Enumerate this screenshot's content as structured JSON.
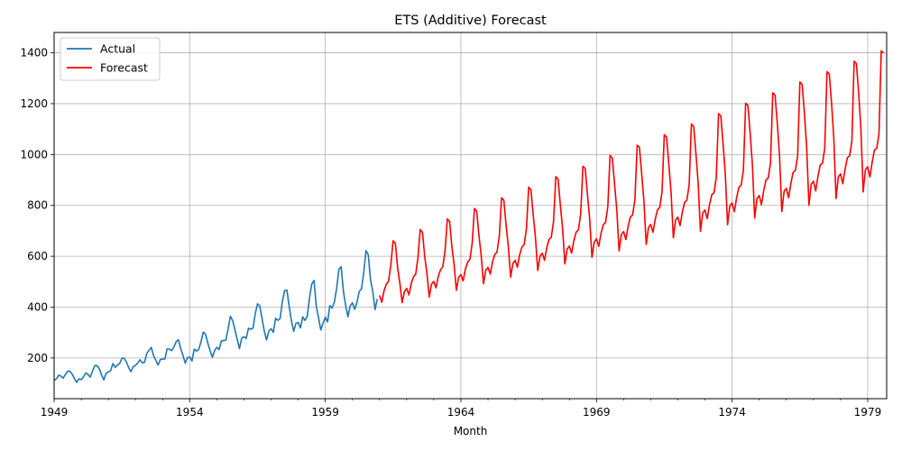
{
  "chart_data": {
    "type": "line",
    "title": "ETS (Additive) Forecast",
    "xlabel": "Month",
    "ylabel": "",
    "xlim": [
      1949.0,
      1979.7
    ],
    "ylim": [
      40,
      1480
    ],
    "x_ticks": [
      1949,
      1954,
      1959,
      1964,
      1969,
      1974,
      1979
    ],
    "x_tick_labels": [
      "1949",
      "1954",
      "1959",
      "1964",
      "1969",
      "1974",
      "1979"
    ],
    "y_ticks": [
      200,
      400,
      600,
      800,
      1000,
      1200,
      1400
    ],
    "y_tick_labels": [
      "200",
      "400",
      "600",
      "800",
      "1000",
      "1200",
      "1400"
    ],
    "grid": true,
    "legend_position": "top-left",
    "series": [
      {
        "name": "Actual",
        "color": "#1f77b4",
        "x_start": 1949.0,
        "x_step": 0.0833333,
        "values": [
          112,
          118,
          132,
          129,
          121,
          135,
          148,
          148,
          136,
          119,
          104,
          118,
          115,
          126,
          141,
          135,
          125,
          149,
          170,
          170,
          158,
          133,
          114,
          140,
          145,
          150,
          178,
          163,
          172,
          178,
          199,
          199,
          184,
          162,
          146,
          166,
          171,
          180,
          193,
          181,
          183,
          218,
          230,
          242,
          209,
          191,
          172,
          194,
          196,
          196,
          236,
          235,
          229,
          243,
          264,
          272,
          237,
          211,
          180,
          201,
          204,
          188,
          235,
          227,
          234,
          264,
          302,
          293,
          259,
          229,
          203,
          229,
          242,
          233,
          267,
          269,
          270,
          315,
          364,
          347,
          312,
          274,
          237,
          278,
          284,
          277,
          317,
          313,
          318,
          374,
          413,
          405,
          355,
          306,
          271,
          306,
          315,
          301,
          356,
          348,
          355,
          422,
          465,
          467,
          404,
          347,
          305,
          336,
          340,
          318,
          362,
          348,
          363,
          435,
          491,
          505,
          404,
          359,
          310,
          337,
          360,
          342,
          406,
          396,
          420,
          472,
          548,
          559,
          463,
          407,
          362,
          405,
          417,
          391,
          419,
          461,
          472,
          535,
          622,
          606,
          508,
          461,
          390,
          432
        ]
      },
      {
        "name": "Forecast",
        "color": "#ff0000",
        "x_start": 1961.0,
        "x_step": 0.0833333,
        "values": [
          446,
          419,
          465,
          490,
          502,
          566,
          661,
          651,
          555,
          493,
          418,
          460,
          474,
          448,
          492,
          519,
          530,
          595,
          705,
          694,
          598,
          530,
          440,
          490,
          501,
          476,
          521,
          547,
          559,
          622,
          747,
          737,
          639,
          566,
          466,
          517,
          528,
          503,
          550,
          577,
          588,
          652,
          788,
          777,
          680,
          602,
          492,
          545,
          556,
          530,
          578,
          607,
          617,
          680,
          830,
          820,
          722,
          637,
          518,
          572,
          584,
          557,
          606,
          636,
          646,
          708,
          872,
          862,
          763,
          673,
          544,
          600,
          612,
          584,
          634,
          666,
          675,
          737,
          913,
          903,
          803,
          709,
          570,
          628,
          640,
          612,
          662,
          695,
          704,
          766,
          954,
          945,
          843,
          745,
          596,
          656,
          669,
          639,
          690,
          724,
          733,
          794,
          996,
          986,
          884,
          781,
          621,
          685,
          697,
          666,
          718,
          754,
          763,
          823,
          1037,
          1028,
          924,
          816,
          647,
          713,
          725,
          694,
          746,
          783,
          792,
          852,
          1078,
          1069,
          964,
          852,
          673,
          742,
          754,
          721,
          774,
          812,
          821,
          880,
          1120,
          1110,
          1004,
          887,
          698,
          770,
          782,
          748,
          802,
          842,
          850,
          909,
          1161,
          1152,
          1044,
          923,
          724,
          798,
          810,
          775,
          830,
          871,
          879,
          938,
          1202,
          1193,
          1084,
          958,
          750,
          827,
          839,
          803,
          858,
          900,
          908,
          966,
          1243,
          1234,
          1124,
          994,
          776,
          855,
          867,
          830,
          886,
          930,
          937,
          995,
          1285,
          1276,
          1164,
          1029,
          801,
          883,
          895,
          857,
          914,
          959,
          966,
          1024,
          1326,
          1317,
          1204,
          1065,
          827,
          912,
          924,
          885,
          942,
          988,
          995,
          1052,
          1367,
          1358,
          1244,
          1100,
          853,
          940,
          952,
          912,
          970,
          1018,
          1024,
          1081,
          1408,
          1399
        ]
      }
    ]
  }
}
